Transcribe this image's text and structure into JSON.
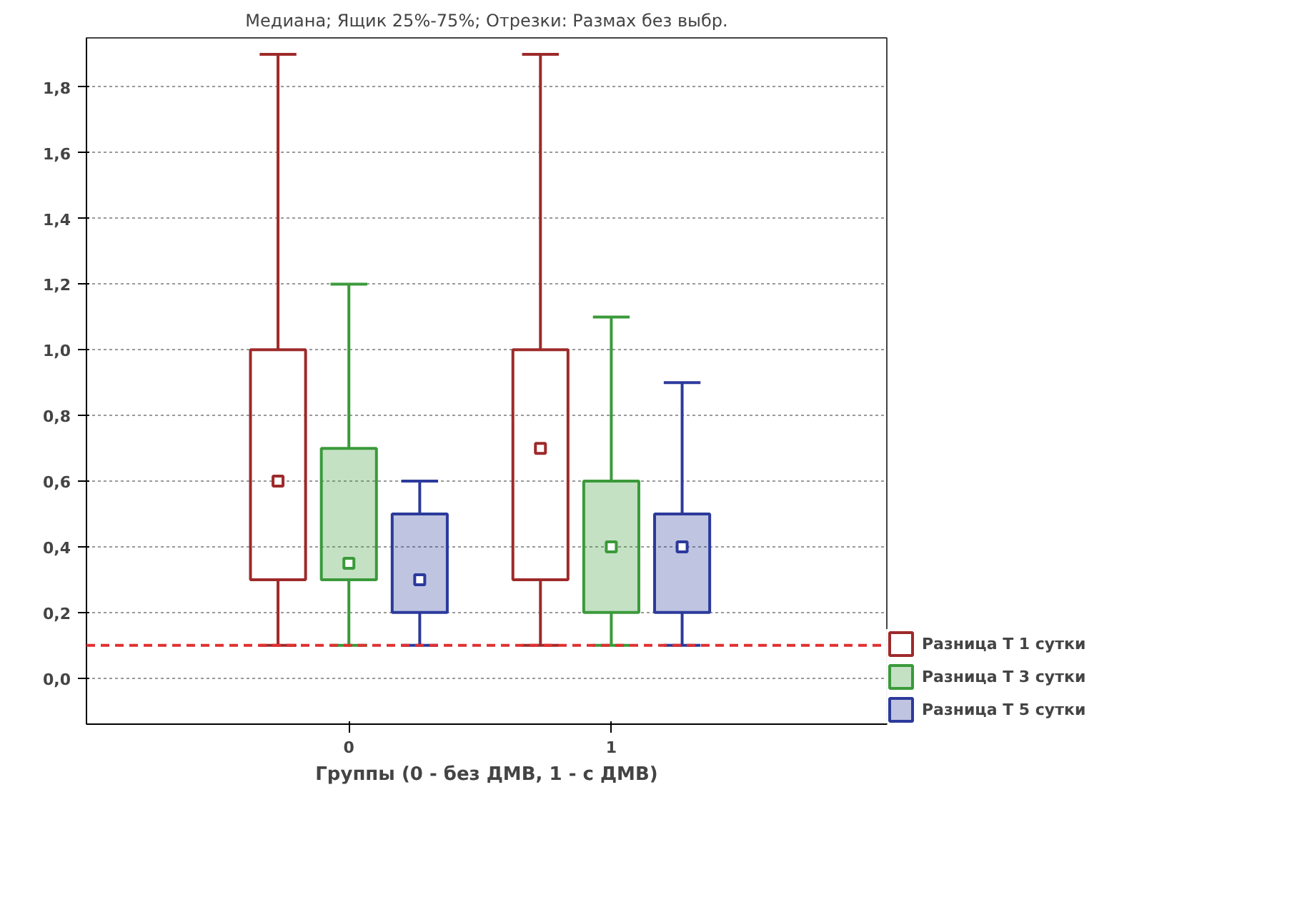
{
  "chart_data": {
    "type": "box",
    "title": "Медиана; Ящик 25%-75%; Отрезки: Размах без выбр.",
    "xlabel": "Группы (0 - без ДМВ, 1 - с ДМВ)",
    "categories": [
      "0",
      "1"
    ],
    "series": [
      {
        "name": "Разница T 1 сутки",
        "color": "#9e2a2a",
        "boxes": [
          {
            "low": 0.1,
            "q1": 0.3,
            "median": 0.6,
            "q3": 1.0,
            "high": 1.9
          },
          {
            "low": 0.1,
            "q1": 0.3,
            "median": 0.7,
            "q3": 1.0,
            "high": 1.9
          }
        ]
      },
      {
        "name": "Разница T 3 сутки",
        "color": "#3a9a3a",
        "boxes": [
          {
            "low": 0.1,
            "q1": 0.3,
            "median": 0.35,
            "q3": 0.7,
            "high": 1.2
          },
          {
            "low": 0.1,
            "q1": 0.2,
            "median": 0.4,
            "q3": 0.6,
            "high": 1.1
          }
        ]
      },
      {
        "name": "Разница T 5 сутки",
        "color": "#2c3a9c",
        "boxes": [
          {
            "low": 0.1,
            "q1": 0.2,
            "median": 0.3,
            "q3": 0.5,
            "high": 0.6
          },
          {
            "low": 0.1,
            "q1": 0.2,
            "median": 0.4,
            "q3": 0.5,
            "high": 0.9
          }
        ]
      }
    ],
    "ylim": [
      -0.14,
      1.95
    ],
    "yticks": [
      {
        "value": 0,
        "label": "0,0"
      },
      {
        "value": 0.2,
        "label": "0,2"
      },
      {
        "value": 0.4,
        "label": "0,4"
      },
      {
        "value": 0.6,
        "label": "0,6"
      },
      {
        "value": 0.8,
        "label": "0,8"
      },
      {
        "value": 1.0,
        "label": "1,0"
      },
      {
        "value": 1.2,
        "label": "1,2"
      },
      {
        "value": 1.4,
        "label": "1,4"
      },
      {
        "value": 1.6,
        "label": "1,6"
      },
      {
        "value": 1.8,
        "label": "1,8"
      }
    ],
    "ref_lines": [
      {
        "axis": "y",
        "value": 0.1,
        "color": "#e03030",
        "line_style": "dashed"
      }
    ],
    "grid": "y",
    "legend": "bottom right",
    "marker": "square"
  }
}
